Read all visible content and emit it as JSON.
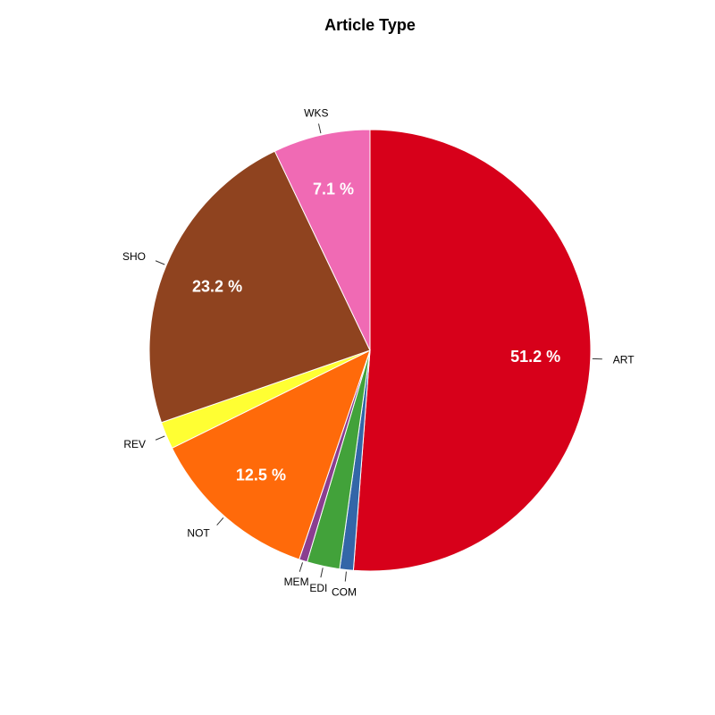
{
  "chart_data": {
    "type": "pie",
    "title": "Article Type",
    "direction": "clockwise from top",
    "slices": [
      {
        "label": "ART",
        "value": 51.2,
        "percent_label": "51.2 %",
        "color": "#d7001a"
      },
      {
        "label": "COM",
        "value": 1.0,
        "percent_label": "",
        "color": "#3366a8"
      },
      {
        "label": "EDI",
        "value": 2.4,
        "percent_label": "",
        "color": "#42a23a"
      },
      {
        "label": "MEM",
        "value": 0.6,
        "percent_label": "",
        "color": "#8b3e90"
      },
      {
        "label": "NOT",
        "value": 12.5,
        "percent_label": "12.5 %",
        "color": "#ff6a0a"
      },
      {
        "label": "REV",
        "value": 2.0,
        "percent_label": "",
        "color": "#ffff33"
      },
      {
        "label": "SHO",
        "value": 23.2,
        "percent_label": "23.2 %",
        "color": "#8f431f"
      },
      {
        "label": "WKS",
        "value": 7.1,
        "percent_label": "7.1 %",
        "color": "#f06ab4"
      }
    ]
  }
}
